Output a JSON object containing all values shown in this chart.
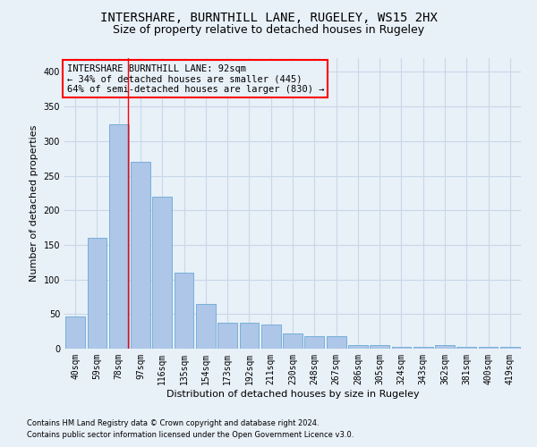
{
  "title": "INTERSHARE, BURNTHILL LANE, RUGELEY, WS15 2HX",
  "subtitle": "Size of property relative to detached houses in Rugeley",
  "xlabel": "Distribution of detached houses by size in Rugeley",
  "ylabel": "Number of detached properties",
  "categories": [
    "40sqm",
    "59sqm",
    "78sqm",
    "97sqm",
    "116sqm",
    "135sqm",
    "154sqm",
    "173sqm",
    "192sqm",
    "211sqm",
    "230sqm",
    "248sqm",
    "267sqm",
    "286sqm",
    "305sqm",
    "324sqm",
    "343sqm",
    "362sqm",
    "381sqm",
    "400sqm",
    "419sqm"
  ],
  "values": [
    47,
    160,
    325,
    270,
    220,
    110,
    65,
    38,
    38,
    35,
    22,
    18,
    18,
    5,
    5,
    3,
    3,
    5,
    3,
    3,
    3
  ],
  "bar_color": "#aec6e8",
  "bar_edge_color": "#6aaad4",
  "grid_color": "#c8d8e8",
  "background_color": "#e8f0f8",
  "annotation_line1": "INTERSHARE BURNTHILL LANE: 92sqm",
  "annotation_line2": "← 34% of detached houses are smaller (445)",
  "annotation_line3": "64% of semi-detached houses are larger (830) →",
  "red_line_x": 2.42,
  "footer1": "Contains HM Land Registry data © Crown copyright and database right 2024.",
  "footer2": "Contains public sector information licensed under the Open Government Licence v3.0.",
  "ylim": [
    0,
    420
  ],
  "yticks": [
    0,
    50,
    100,
    150,
    200,
    250,
    300,
    350,
    400
  ],
  "title_fontsize": 10,
  "subtitle_fontsize": 9,
  "tick_fontsize": 7,
  "ylabel_fontsize": 8,
  "xlabel_fontsize": 8,
  "ann_fontsize": 7.5,
  "footer_fontsize": 6
}
